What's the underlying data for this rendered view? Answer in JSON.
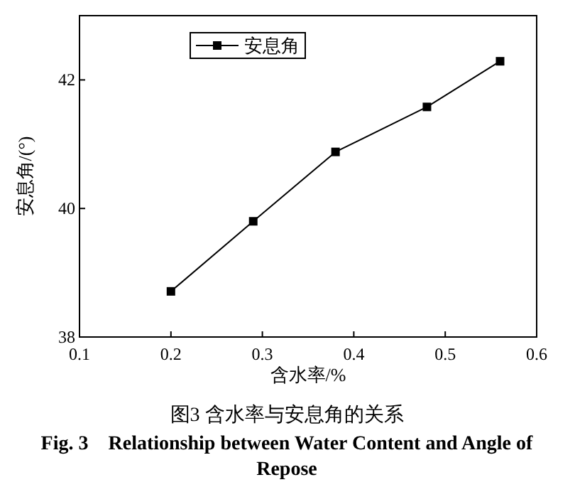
{
  "chart_data": {
    "type": "line",
    "title": "图3  含水率与安息角的关系",
    "subtitle": "Fig. 3    Relationship between Water Content and Angle of Repose",
    "xlabel": "含水率/%",
    "ylabel": "安息角/(°)",
    "x": [
      0.2,
      0.29,
      0.38,
      0.48,
      0.56
    ],
    "series": [
      {
        "name": "安息角",
        "color": "#000000",
        "values": [
          38.71,
          39.8,
          40.88,
          41.58,
          42.29
        ]
      }
    ],
    "xlim": [
      0.1,
      0.6
    ],
    "xticks": [
      0.1,
      0.2,
      0.3,
      0.4,
      0.5,
      0.6
    ],
    "ylim": [
      38,
      43
    ],
    "yticks": [
      38,
      40,
      42
    ],
    "legend": "top left",
    "marker": "square",
    "line_style": "solid",
    "grid": false
  }
}
